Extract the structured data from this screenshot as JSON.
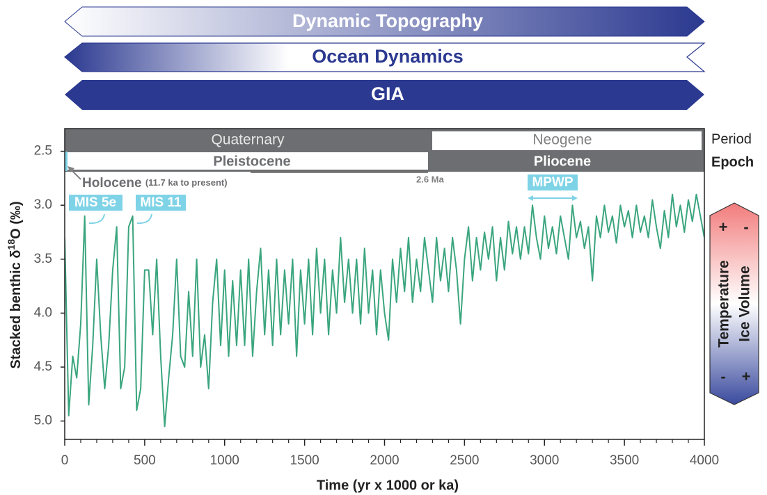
{
  "arrows": [
    {
      "label": "Dynamic Topography"
    },
    {
      "label": "Ocean Dynamics"
    },
    {
      "label": "GIA"
    }
  ],
  "chart_data": {
    "type": "line",
    "x_label": "Time (yr x 1000 or ka)",
    "y_label": {
      "text": "Stacked benthic δ",
      "sup": "18",
      "tail": "O (‰)"
    },
    "color": "#3aa57e",
    "x": [
      0,
      25,
      50,
      75,
      100,
      125,
      150,
      175,
      200,
      225,
      250,
      275,
      300,
      325,
      350,
      375,
      400,
      425,
      450,
      475,
      500,
      525,
      550,
      575,
      600,
      625,
      650,
      675,
      700,
      725,
      750,
      775,
      800,
      825,
      850,
      875,
      900,
      925,
      950,
      975,
      1000,
      1025,
      1050,
      1075,
      1100,
      1125,
      1150,
      1175,
      1200,
      1225,
      1250,
      1275,
      1300,
      1325,
      1350,
      1375,
      1400,
      1425,
      1450,
      1475,
      1500,
      1525,
      1550,
      1575,
      1600,
      1625,
      1650,
      1675,
      1700,
      1725,
      1750,
      1775,
      1800,
      1825,
      1850,
      1875,
      1900,
      1925,
      1950,
      1975,
      2000,
      2025,
      2050,
      2075,
      2100,
      2125,
      2150,
      2175,
      2200,
      2225,
      2250,
      2275,
      2300,
      2325,
      2350,
      2375,
      2400,
      2425,
      2450,
      2475,
      2500,
      2525,
      2550,
      2575,
      2600,
      2625,
      2650,
      2675,
      2700,
      2725,
      2750,
      2775,
      2800,
      2825,
      2850,
      2875,
      2900,
      2925,
      2950,
      2975,
      3000,
      3025,
      3050,
      3075,
      3100,
      3125,
      3150,
      3175,
      3200,
      3225,
      3250,
      3275,
      3300,
      3325,
      3350,
      3375,
      3400,
      3425,
      3450,
      3475,
      3500,
      3525,
      3550,
      3575,
      3600,
      3625,
      3650,
      3675,
      3700,
      3725,
      3750,
      3775,
      3800,
      3825,
      3850,
      3875,
      3900,
      3925,
      3950,
      3975,
      4000
    ],
    "values": [
      3.3,
      4.95,
      4.4,
      4.6,
      4.1,
      3.1,
      4.85,
      4.3,
      3.5,
      4.2,
      4.7,
      4.3,
      3.6,
      3.2,
      4.7,
      4.5,
      3.2,
      3.1,
      4.9,
      4.7,
      3.6,
      3.6,
      4.2,
      3.5,
      4.4,
      5.05,
      4.6,
      4.2,
      3.5,
      4.4,
      4.5,
      3.8,
      4.4,
      3.5,
      4.5,
      4.2,
      4.7,
      3.9,
      3.5,
      4.3,
      3.6,
      4.4,
      3.7,
      4.3,
      3.6,
      4.3,
      3.5,
      4.4,
      3.8,
      3.4,
      4.2,
      3.6,
      4.3,
      3.5,
      4.2,
      3.6,
      4.1,
      3.5,
      4.4,
      3.6,
      4.1,
      3.5,
      4.2,
      3.4,
      4.0,
      3.5,
      4.2,
      3.6,
      4.0,
      3.3,
      3.9,
      3.5,
      4.0,
      3.5,
      4.1,
      3.4,
      4.0,
      3.6,
      4.2,
      3.6,
      4.0,
      4.25,
      3.5,
      3.9,
      3.4,
      3.8,
      3.3,
      3.9,
      3.5,
      3.8,
      3.3,
      3.6,
      3.9,
      3.3,
      3.7,
      3.4,
      3.8,
      3.3,
      3.6,
      4.1,
      3.5,
      3.2,
      3.7,
      3.3,
      3.6,
      3.25,
      3.5,
      3.2,
      3.7,
      3.3,
      3.6,
      3.15,
      3.45,
      3.2,
      3.5,
      3.2,
      3.45,
      3.0,
      3.3,
      3.5,
      3.1,
      3.4,
      3.2,
      3.45,
      3.1,
      3.3,
      3.5,
      3.0,
      3.3,
      3.15,
      3.4,
      3.2,
      3.7,
      3.1,
      3.3,
      3.0,
      3.25,
      3.1,
      3.35,
      3.0,
      3.2,
      3.05,
      3.3,
      3.0,
      3.25,
      3.1,
      3.3,
      2.95,
      3.2,
      3.4,
      3.05,
      3.3,
      2.9,
      3.2,
      3.0,
      3.25,
      2.95,
      3.15,
      2.9,
      3.1,
      3.3
    ],
    "xlim": [
      0,
      4000
    ],
    "xticks": [
      0,
      500,
      1000,
      1500,
      2000,
      2500,
      3000,
      3500,
      4000
    ],
    "xminorticks": [
      100,
      200,
      300,
      400,
      600,
      700,
      800,
      900,
      1100,
      1200,
      1300,
      1400,
      1600,
      1700,
      1800,
      1900,
      2100,
      2200,
      2300,
      2400,
      2600,
      2700,
      2800,
      2900,
      3100,
      3200,
      3300,
      3400,
      3600,
      3700,
      3800,
      3900
    ],
    "ylim": [
      2.29,
      5.17
    ],
    "y_inverted": true,
    "yticks": [
      2.5,
      {
        "value": 3.0,
        "label": "3.0"
      },
      3.5,
      {
        "value": 4.0,
        "label": "4.0"
      },
      4.5,
      {
        "value": 5.0,
        "label": "5.0"
      }
    ],
    "timescale": {
      "period_label": "Period",
      "epoch_label": "Epoch",
      "periods": [
        "Quaternary",
        "Neogene"
      ],
      "epochs": [
        "Pleistocene",
        "Pliocene"
      ],
      "boundary_label": "2.6 Ma"
    },
    "annotations": {
      "holocene": "Holocene",
      "holocene_range": "(11.7 ka to present)",
      "mis5e": "MIS 5e",
      "mis11": "MIS 11",
      "mpwp": "MPWP"
    },
    "proxy_key": {
      "temperature": "Temperature",
      "ice_volume": "Ice Volume",
      "plus": "+",
      "minus": "-"
    }
  }
}
